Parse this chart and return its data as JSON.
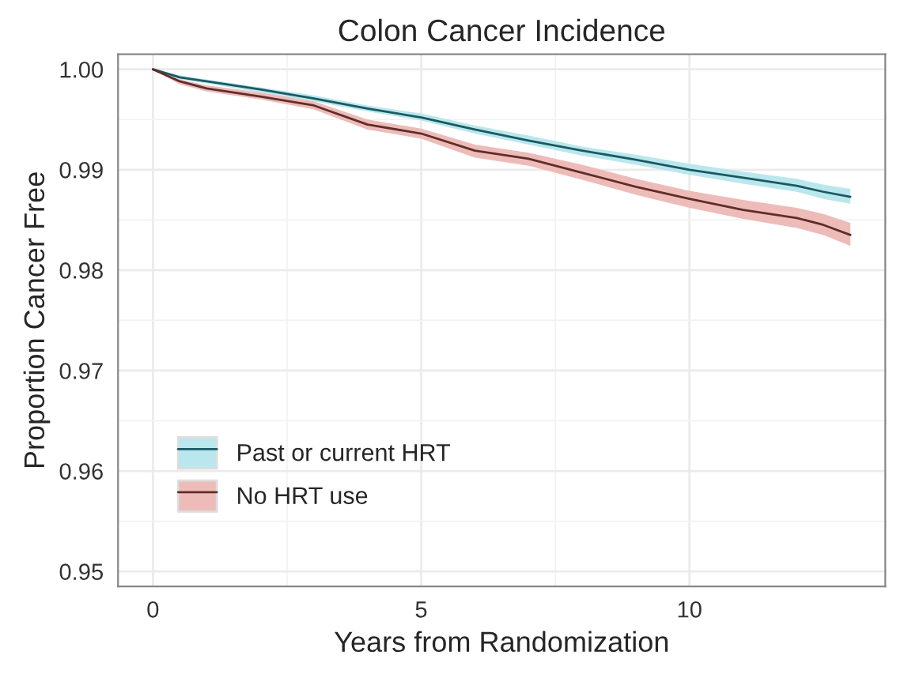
{
  "chart_data": {
    "type": "line",
    "title": "Colon Cancer Incidence",
    "xlabel": "Years from Randomization",
    "ylabel": "Proportion Cancer Free",
    "series": [
      {
        "name": "Past or current HRT",
        "color": "#1b5961",
        "x": [
          0,
          0.5,
          1,
          2,
          3,
          4,
          5,
          6,
          7,
          8,
          9,
          10,
          11,
          12,
          12.5,
          13
        ],
        "values": [
          1.0,
          0.9992,
          0.9988,
          0.998,
          0.9971,
          0.9961,
          0.9952,
          0.994,
          0.9929,
          0.9919,
          0.991,
          0.99,
          0.9892,
          0.9884,
          0.9878,
          0.9873
        ],
        "lower": [
          1.0,
          0.999,
          0.9986,
          0.9977,
          0.9968,
          0.9958,
          0.9949,
          0.9936,
          0.9925,
          0.9914,
          0.9905,
          0.9895,
          0.9886,
          0.9878,
          0.9871,
          0.9866
        ],
        "upper": [
          1.0,
          0.9994,
          0.999,
          0.9982,
          0.9974,
          0.9964,
          0.9956,
          0.9944,
          0.9934,
          0.9923,
          0.9915,
          0.9906,
          0.9898,
          0.9891,
          0.9885,
          0.9881
        ]
      },
      {
        "name": "No HRT use",
        "color": "#612d2a",
        "x": [
          0,
          0.5,
          1,
          2,
          3,
          4,
          5,
          6,
          7,
          8,
          9,
          10,
          11,
          12,
          12.5,
          13
        ],
        "values": [
          1.0,
          0.9988,
          0.9981,
          0.9973,
          0.9964,
          0.9945,
          0.9936,
          0.9919,
          0.9911,
          0.9897,
          0.9883,
          0.9871,
          0.986,
          0.9852,
          0.9845,
          0.9835
        ],
        "lower": [
          1.0,
          0.9985,
          0.9978,
          0.997,
          0.996,
          0.994,
          0.9931,
          0.9912,
          0.9904,
          0.989,
          0.9875,
          0.9862,
          0.9851,
          0.9842,
          0.9835,
          0.9824
        ],
        "upper": [
          1.0,
          0.999,
          0.9984,
          0.9977,
          0.9968,
          0.995,
          0.9941,
          0.9925,
          0.9917,
          0.9905,
          0.9891,
          0.9879,
          0.987,
          0.9862,
          0.9856,
          0.9847
        ]
      }
    ],
    "xlim": [
      -0.65,
      13.65
    ],
    "xticks": [
      0,
      5,
      10
    ],
    "ylim": [
      0.9485,
      1.0015
    ],
    "yticks": [
      0.95,
      0.96,
      0.97,
      0.98,
      0.99,
      {
        "value": 1.0,
        "label": "1.00"
      }
    ],
    "grid": true,
    "legend": "bottom left"
  }
}
